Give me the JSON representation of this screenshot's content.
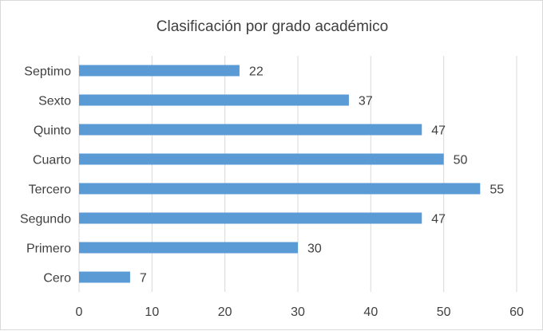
{
  "chart_data": {
    "type": "bar",
    "orientation": "horizontal",
    "title": "Clasificación por grado académico",
    "xlabel": "",
    "ylabel": "",
    "categories": [
      "Septimo",
      "Sexto",
      "Quinto",
      "Cuarto",
      "Tercero",
      "Segundo",
      "Primero",
      "Cero"
    ],
    "values": [
      22,
      37,
      47,
      50,
      55,
      47,
      30,
      7
    ],
    "xlim": [
      0,
      60
    ],
    "xticks": [
      "0",
      "10",
      "20",
      "30",
      "40",
      "50",
      "60"
    ],
    "grid": "vertical",
    "legend": "none",
    "data_labels": true,
    "bar_color": "#5b9bd5"
  }
}
